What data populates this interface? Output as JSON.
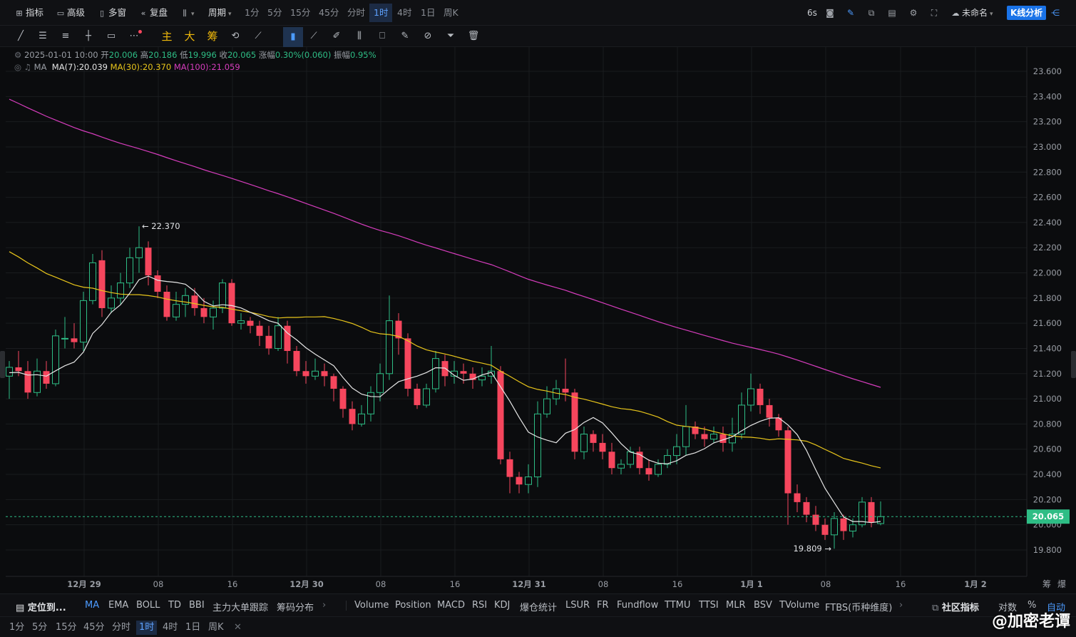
{
  "topbar": {
    "indicators_label": "指标",
    "advanced_label": "高级",
    "multi_window_label": "多窗",
    "replay_label": "复盘",
    "period_label": "周期",
    "intervals": [
      "1分",
      "5分",
      "15分",
      "45分",
      "分时",
      "1时",
      "4时",
      "1日",
      "周K"
    ],
    "active_interval": "1时",
    "refresh": "6s",
    "layout_name": "未命名",
    "kline_analysis": "K线分析"
  },
  "toolbar": {
    "main_label": "主",
    "big_label": "大",
    "chip_label": "筹"
  },
  "ohlc": {
    "date": "2025-01-01 10:00",
    "open_label": "开",
    "open": "20.006",
    "high_label": "高",
    "high": "20.186",
    "low_label": "低",
    "low": "19.996",
    "close_label": "收",
    "close": "20.065",
    "change_label": "涨幅",
    "change": "0.30%(0.060)",
    "amp_label": "振幅",
    "amp": "0.95%"
  },
  "ma_legend": {
    "label": "MA",
    "ma7": "MA(7):20.039",
    "ma30": "MA(30):20.370",
    "ma100": "MA(100):21.059"
  },
  "colors": {
    "up": "#2ebd85",
    "down": "#f6465d",
    "ma7": "#e6e6e6",
    "ma30": "#e8c51b",
    "ma100": "#d63dbd",
    "accent": "#1a73e8"
  },
  "chart_data": {
    "type": "candlestick",
    "y_ticks": [
      "23.600",
      "23.400",
      "23.200",
      "23.000",
      "22.800",
      "22.600",
      "22.400",
      "22.200",
      "22.000",
      "21.800",
      "21.600",
      "21.400",
      "21.200",
      "21.000",
      "20.800",
      "20.600",
      "20.400",
      "20.200",
      "20.000",
      "19.800"
    ],
    "x_ticks": [
      "12月 29",
      "08",
      "16",
      "12月 30",
      "08",
      "16",
      "12月 31",
      "08",
      "16",
      "1月 1",
      "08",
      "16",
      "1月 2"
    ],
    "ylim": [
      19.7,
      23.7
    ],
    "last_price": "20.065",
    "high_marker": "22.370",
    "low_marker": "19.809",
    "candles": [
      [
        21.18,
        21.25,
        21.0,
        21.3
      ],
      [
        21.25,
        21.22,
        21.18,
        21.38
      ],
      [
        21.22,
        21.05,
        21.0,
        21.3
      ],
      [
        21.05,
        21.22,
        21.02,
        21.32
      ],
      [
        21.22,
        21.12,
        21.08,
        21.3
      ],
      [
        21.12,
        21.5,
        21.1,
        21.55
      ],
      [
        21.48,
        21.48,
        21.4,
        21.65
      ],
      [
        21.48,
        21.45,
        21.4,
        21.6
      ],
      [
        21.45,
        21.78,
        21.38,
        21.85
      ],
      [
        21.78,
        22.08,
        21.75,
        22.15
      ],
      [
        22.1,
        21.72,
        21.65,
        22.18
      ],
      [
        21.72,
        21.8,
        21.68,
        21.9
      ],
      [
        21.8,
        21.92,
        21.75,
        22.0
      ],
      [
        21.92,
        22.12,
        21.88,
        22.2
      ],
      [
        22.12,
        22.2,
        22.0,
        22.37
      ],
      [
        22.2,
        21.98,
        21.9,
        22.25
      ],
      [
        21.98,
        21.85,
        21.8,
        22.02
      ],
      [
        21.85,
        21.65,
        21.62,
        21.9
      ],
      [
        21.65,
        21.75,
        21.62,
        21.85
      ],
      [
        21.75,
        21.82,
        21.65,
        21.88
      ],
      [
        21.82,
        21.72,
        21.66,
        21.88
      ],
      [
        21.72,
        21.65,
        21.6,
        21.8
      ],
      [
        21.65,
        21.72,
        21.55,
        21.78
      ],
      [
        21.72,
        21.92,
        21.68,
        21.95
      ],
      [
        21.92,
        21.6,
        21.58,
        21.95
      ],
      [
        21.6,
        21.62,
        21.55,
        21.68
      ],
      [
        21.62,
        21.58,
        21.52,
        21.65
      ],
      [
        21.58,
        21.5,
        21.42,
        21.62
      ],
      [
        21.5,
        21.4,
        21.35,
        21.58
      ],
      [
        21.4,
        21.58,
        21.38,
        21.65
      ],
      [
        21.58,
        21.38,
        21.28,
        21.62
      ],
      [
        21.38,
        21.22,
        21.18,
        21.42
      ],
      [
        21.22,
        21.18,
        21.12,
        21.3
      ],
      [
        21.18,
        21.22,
        21.15,
        21.32
      ],
      [
        21.22,
        21.18,
        21.1,
        21.28
      ],
      [
        21.18,
        21.08,
        20.98,
        21.2
      ],
      [
        21.08,
        20.92,
        20.85,
        21.1
      ],
      [
        20.92,
        20.8,
        20.75,
        20.98
      ],
      [
        20.8,
        20.88,
        20.78,
        20.95
      ],
      [
        20.88,
        21.05,
        20.82,
        21.1
      ],
      [
        21.05,
        21.2,
        20.98,
        21.28
      ],
      [
        21.2,
        21.62,
        21.15,
        21.82
      ],
      [
        21.62,
        21.48,
        21.35,
        21.68
      ],
      [
        21.48,
        21.08,
        21.02,
        21.52
      ],
      [
        21.08,
        20.95,
        20.92,
        21.12
      ],
      [
        20.95,
        21.08,
        20.93,
        21.12
      ],
      [
        21.08,
        21.32,
        21.05,
        21.38
      ],
      [
        21.3,
        21.18,
        21.1,
        21.35
      ],
      [
        21.18,
        21.22,
        21.12,
        21.3
      ],
      [
        21.22,
        21.2,
        21.12,
        21.28
      ],
      [
        21.2,
        21.15,
        21.08,
        21.25
      ],
      [
        21.15,
        21.18,
        21.1,
        21.25
      ],
      [
        21.18,
        21.22,
        21.12,
        21.42
      ],
      [
        21.22,
        20.52,
        20.48,
        21.26
      ],
      [
        20.52,
        20.38,
        20.25,
        20.58
      ],
      [
        20.38,
        20.32,
        20.25,
        20.42
      ],
      [
        20.32,
        20.38,
        20.25,
        20.48
      ],
      [
        20.38,
        20.88,
        20.3,
        20.98
      ],
      [
        20.88,
        21.0,
        20.85,
        21.1
      ],
      [
        21.0,
        21.08,
        20.95,
        21.15
      ],
      [
        21.08,
        21.05,
        20.98,
        21.32
      ],
      [
        21.05,
        20.58,
        20.52,
        21.08
      ],
      [
        20.58,
        20.72,
        20.52,
        20.78
      ],
      [
        20.72,
        20.65,
        20.58,
        20.75
      ],
      [
        20.65,
        20.58,
        20.52,
        20.72
      ],
      [
        20.58,
        20.45,
        20.4,
        20.65
      ],
      [
        20.45,
        20.48,
        20.4,
        20.52
      ],
      [
        20.48,
        20.58,
        20.45,
        20.62
      ],
      [
        20.58,
        20.45,
        20.4,
        20.62
      ],
      [
        20.45,
        20.4,
        20.35,
        20.52
      ],
      [
        20.4,
        20.48,
        20.38,
        20.52
      ],
      [
        20.48,
        20.55,
        20.45,
        20.6
      ],
      [
        20.55,
        20.62,
        20.48,
        20.72
      ],
      [
        20.62,
        20.78,
        20.55,
        20.95
      ],
      [
        20.78,
        20.72,
        20.68,
        20.82
      ],
      [
        20.72,
        20.68,
        20.62,
        20.78
      ],
      [
        20.68,
        20.72,
        20.65,
        20.78
      ],
      [
        20.72,
        20.65,
        20.58,
        20.78
      ],
      [
        20.65,
        20.72,
        20.58,
        20.85
      ],
      [
        20.72,
        20.95,
        20.68,
        21.05
      ],
      [
        20.95,
        21.08,
        20.9,
        21.2
      ],
      [
        21.08,
        20.95,
        20.88,
        21.12
      ],
      [
        20.95,
        20.85,
        20.78,
        21.0
      ],
      [
        20.85,
        20.75,
        20.7,
        20.88
      ],
      [
        20.75,
        20.25,
        20.0,
        20.78
      ],
      [
        20.25,
        20.18,
        20.1,
        20.32
      ],
      [
        20.18,
        20.08,
        20.02,
        20.22
      ],
      [
        20.08,
        20.0,
        19.95,
        20.15
      ],
      [
        20.0,
        19.92,
        19.88,
        20.05
      ],
      [
        19.92,
        20.05,
        19.81,
        20.1
      ],
      [
        20.05,
        19.95,
        19.88,
        20.08
      ],
      [
        19.95,
        20.0,
        19.9,
        20.05
      ],
      [
        20.0,
        20.18,
        19.98,
        20.22
      ],
      [
        20.18,
        20.02,
        19.98,
        20.22
      ],
      [
        20.01,
        20.065,
        19.996,
        20.186
      ]
    ]
  },
  "bottom_bar": {
    "locate_label": "定位到...",
    "indicators": [
      "MA",
      "EMA",
      "BOLL",
      "TD",
      "BBI",
      "主力大单跟踪",
      "筹码分布"
    ],
    "sub_indicators": [
      "Volume",
      "Position",
      "MACD",
      "RSI",
      "KDJ",
      "爆仓统计",
      "LSUR",
      "FR",
      "Fundflow",
      "TTMU",
      "TTSI",
      "MLR",
      "BSV",
      "TVolume",
      "FTBS(币种维度)"
    ],
    "community_label": "社区指标",
    "log_label": "对数",
    "percent_label": "%",
    "auto_label": "自动",
    "chip_label": "筹",
    "burst_label": "爆"
  },
  "bottom_intervals": {
    "items": [
      "1分",
      "5分",
      "15分",
      "45分",
      "分时",
      "1时",
      "4时",
      "1日",
      "周K"
    ],
    "active": "1时"
  },
  "watermark": "@加密老谭"
}
